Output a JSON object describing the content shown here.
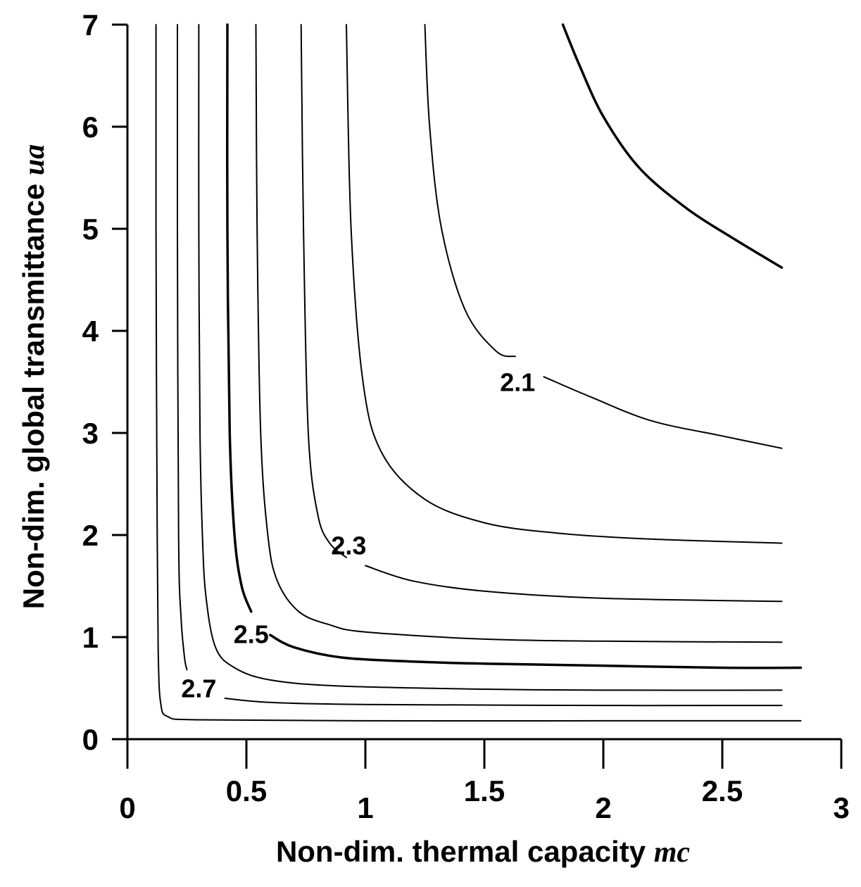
{
  "chart_data": {
    "type": "contour",
    "title": "",
    "xlabel": "Non-dim. thermal capacity ",
    "xlabel_var": "mc",
    "ylabel": "Non-dim. global transmittance ",
    "ylabel_var": "ua",
    "xlim": [
      0,
      3
    ],
    "ylim": [
      0,
      7
    ],
    "x_ticks": [
      {
        "value": 0,
        "label": "0"
      },
      {
        "value": 0.5,
        "label": "0.5"
      },
      {
        "value": 1,
        "label": "1"
      },
      {
        "value": 1.5,
        "label": "1.5"
      },
      {
        "value": 2,
        "label": "2"
      },
      {
        "value": 2.5,
        "label": "2.5"
      },
      {
        "value": 3,
        "label": "3"
      }
    ],
    "y_ticks": [
      {
        "value": 0,
        "label": "0"
      },
      {
        "value": 1,
        "label": "1"
      },
      {
        "value": 2,
        "label": "2"
      },
      {
        "value": 3,
        "label": "3"
      },
      {
        "value": 4,
        "label": "4"
      },
      {
        "value": 5,
        "label": "5"
      },
      {
        "value": 6,
        "label": "6"
      },
      {
        "value": 7,
        "label": "7"
      }
    ],
    "grid": false,
    "series": [
      {
        "name": "contour-1",
        "bold": false,
        "points": [
          [
            0.12,
            7
          ],
          [
            0.12,
            5
          ],
          [
            0.125,
            2
          ],
          [
            0.13,
            0.8
          ],
          [
            0.14,
            0.35
          ],
          [
            0.17,
            0.22
          ],
          [
            0.3,
            0.19
          ],
          [
            1,
            0.18
          ],
          [
            2,
            0.18
          ],
          [
            2.83,
            0.18
          ]
        ]
      },
      {
        "name": "contour-2",
        "bold": false,
        "gaps": [
          [
            0.25,
            0.41
          ]
        ],
        "points": [
          [
            0.21,
            7
          ],
          [
            0.21,
            5
          ],
          [
            0.215,
            2
          ],
          [
            0.225,
            1.2
          ],
          [
            0.24,
            0.8
          ],
          [
            0.25,
            0.68
          ],
          [
            0.41,
            0.4
          ],
          [
            0.6,
            0.36
          ],
          [
            1,
            0.34
          ],
          [
            2,
            0.33
          ],
          [
            2.75,
            0.33
          ]
        ]
      },
      {
        "name": "contour-3",
        "bold": false,
        "points": [
          [
            0.3,
            7
          ],
          [
            0.3,
            5
          ],
          [
            0.305,
            3
          ],
          [
            0.315,
            2
          ],
          [
            0.33,
            1.4
          ],
          [
            0.37,
            0.9
          ],
          [
            0.45,
            0.7
          ],
          [
            0.6,
            0.58
          ],
          [
            0.9,
            0.52
          ],
          [
            1.5,
            0.49
          ],
          [
            2,
            0.48
          ],
          [
            2.75,
            0.48
          ]
        ]
      },
      {
        "name": "contour-4",
        "bold": true,
        "gaps": [
          [
            0.52,
            0.6
          ]
        ],
        "points": [
          [
            0.42,
            7
          ],
          [
            0.42,
            5
          ],
          [
            0.43,
            3
          ],
          [
            0.45,
            2
          ],
          [
            0.48,
            1.5
          ],
          [
            0.52,
            1.25
          ],
          [
            0.6,
            1.02
          ],
          [
            0.7,
            0.9
          ],
          [
            0.9,
            0.8
          ],
          [
            1.2,
            0.76
          ],
          [
            1.5,
            0.74
          ],
          [
            2,
            0.72
          ],
          [
            2.5,
            0.7
          ],
          [
            2.83,
            0.7
          ]
        ]
      },
      {
        "name": "contour-5",
        "bold": false,
        "points": [
          [
            0.54,
            7
          ],
          [
            0.545,
            5
          ],
          [
            0.56,
            3
          ],
          [
            0.59,
            2
          ],
          [
            0.63,
            1.55
          ],
          [
            0.72,
            1.25
          ],
          [
            0.85,
            1.12
          ],
          [
            1,
            1.05
          ],
          [
            1.5,
            0.98
          ],
          [
            2,
            0.96
          ],
          [
            2.75,
            0.95
          ]
        ]
      },
      {
        "name": "contour-6",
        "bold": false,
        "gaps": [
          [
            0.92,
            1.0
          ]
        ],
        "points": [
          [
            0.73,
            7
          ],
          [
            0.74,
            5
          ],
          [
            0.76,
            3
          ],
          [
            0.8,
            2.2
          ],
          [
            0.85,
            1.92
          ],
          [
            0.92,
            1.78
          ],
          [
            1,
            1.7
          ],
          [
            1.2,
            1.55
          ],
          [
            1.5,
            1.45
          ],
          [
            2,
            1.38
          ],
          [
            2.75,
            1.35
          ]
        ]
      },
      {
        "name": "contour-7",
        "bold": false,
        "points": [
          [
            0.92,
            7
          ],
          [
            0.94,
            5
          ],
          [
            0.99,
            3.5
          ],
          [
            1.07,
            2.8
          ],
          [
            1.25,
            2.35
          ],
          [
            1.5,
            2.12
          ],
          [
            1.8,
            2.02
          ],
          [
            2.2,
            1.96
          ],
          [
            2.75,
            1.92
          ]
        ]
      },
      {
        "name": "contour-8",
        "bold": false,
        "gaps": [
          [
            1.63,
            1.75
          ]
        ],
        "points": [
          [
            1.25,
            7
          ],
          [
            1.27,
            6
          ],
          [
            1.32,
            5
          ],
          [
            1.42,
            4.2
          ],
          [
            1.55,
            3.8
          ],
          [
            1.63,
            3.75
          ],
          [
            1.75,
            3.55
          ],
          [
            1.95,
            3.35
          ],
          [
            2.2,
            3.12
          ],
          [
            2.5,
            2.97
          ],
          [
            2.75,
            2.85
          ]
        ]
      },
      {
        "name": "contour-9",
        "bold": true,
        "points": [
          [
            1.83,
            7
          ],
          [
            1.9,
            6.6
          ],
          [
            2.0,
            6.1
          ],
          [
            2.15,
            5.6
          ],
          [
            2.35,
            5.2
          ],
          [
            2.55,
            4.9
          ],
          [
            2.75,
            4.62
          ]
        ]
      }
    ],
    "annotations": [
      {
        "label": "2.1",
        "x": 1.64,
        "y": 3.5
      },
      {
        "label": "2.3",
        "x": 0.93,
        "y": 1.9
      },
      {
        "label": "2.5",
        "x": 0.52,
        "y": 1.03
      },
      {
        "label": "2.7",
        "x": 0.3,
        "y": 0.5
      }
    ]
  }
}
